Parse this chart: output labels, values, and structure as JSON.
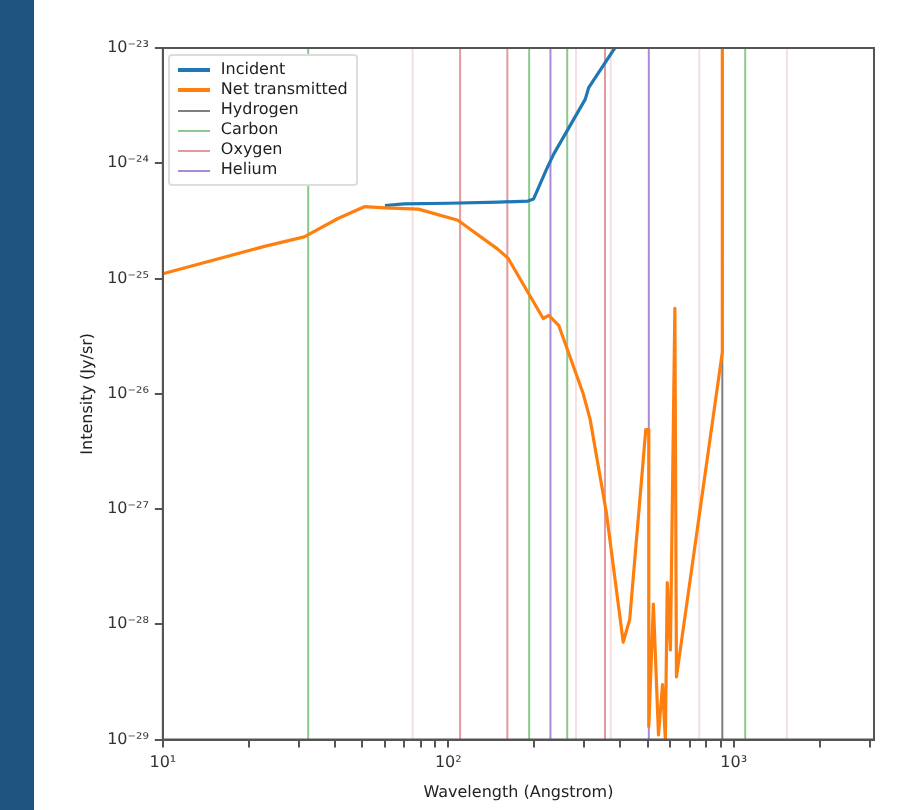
{
  "chart_data": {
    "type": "line",
    "xlabel": "Wavelength (Angstrom)",
    "ylabel": "Intensity (Jy/sr)",
    "log": "xy",
    "grid": false,
    "legend": "top left",
    "marker": "none",
    "line_style": "solid",
    "xlim": [
      10,
      3100
    ],
    "ylim": [
      1e-29,
      1e-23
    ],
    "xticks": [
      {
        "value": 10,
        "label": "10¹"
      },
      {
        "value": 20,
        "label": null
      },
      {
        "value": 30,
        "label": null
      },
      {
        "value": 40,
        "label": null
      },
      {
        "value": 50,
        "label": null
      },
      {
        "value": 60,
        "label": null
      },
      {
        "value": 70,
        "label": null
      },
      {
        "value": 80,
        "label": null
      },
      {
        "value": 90,
        "label": null
      },
      {
        "value": 100,
        "label": "10²"
      },
      {
        "value": 200,
        "label": null
      },
      {
        "value": 300,
        "label": null
      },
      {
        "value": 400,
        "label": null
      },
      {
        "value": 500,
        "label": null
      },
      {
        "value": 600,
        "label": null
      },
      {
        "value": 700,
        "label": null
      },
      {
        "value": 800,
        "label": null
      },
      {
        "value": 900,
        "label": null
      },
      {
        "value": 1000,
        "label": "10³"
      },
      {
        "value": 2000,
        "label": null
      },
      {
        "value": 3000,
        "label": null
      }
    ],
    "yticks": [
      {
        "value": 1e-29,
        "label": "10⁻²⁹"
      },
      {
        "value": 1e-28,
        "label": "10⁻²⁸"
      },
      {
        "value": 1e-27,
        "label": "10⁻²⁷"
      },
      {
        "value": 1e-26,
        "label": "10⁻²⁶"
      },
      {
        "value": 1e-25,
        "label": "10⁻²⁵"
      },
      {
        "value": 1e-24,
        "label": "10⁻²⁴"
      },
      {
        "value": 1e-23,
        "label": "10⁻²³"
      }
    ],
    "series": [
      {
        "name": "Incident",
        "color": "#1f77b4",
        "x": [
          60,
          70,
          100,
          150,
          190,
          199,
          221,
          234,
          302,
          310,
          383
        ],
        "values": [
          4.3e-25,
          4.45e-25,
          4.5e-25,
          4.6e-25,
          4.7e-25,
          4.9e-25,
          8.9e-25,
          1.2e-24,
          3.6e-24,
          4.5e-24,
          1e-23
        ]
      },
      {
        "name": "Net transmitted",
        "color": "#ff7f0e",
        "x": [
          10,
          22.7,
          31.3,
          40.9,
          50.8,
          60,
          78.6,
          108,
          149,
          162,
          215,
          225,
          244,
          297,
          314,
          358,
          410,
          432,
          492,
          504,
          504,
          523,
          545,
          563,
          576,
          585,
          600,
          622,
          630,
          912,
          912
        ],
        "values": [
          1.1e-25,
          1.9e-25,
          2.3e-25,
          3.3e-25,
          4.2e-25,
          4.1e-25,
          4e-25,
          3.2e-25,
          1.8e-25,
          1.5e-25,
          4.5e-26,
          4.8e-26,
          3.9e-26,
          1e-26,
          6e-27,
          9.3e-28,
          7e-29,
          1.1e-28,
          4.9e-27,
          4.9e-27,
          1.3e-29,
          1.5e-28,
          1.1e-29,
          3e-29,
          1e-29,
          2.3e-28,
          6e-29,
          5.5e-26,
          3.5e-29,
          2.3e-26,
          1e-23
        ]
      },
      {
        "name": "Hydrogen",
        "color": "#7f7f7f",
        "x": [
          912,
          912
        ],
        "values": [
          1e-29,
          1e-23
        ]
      },
      {
        "name": "Carbon",
        "color": "#8cc98c",
        "x": [
          32.3,
          32.3,
          null,
          192,
          192,
          null,
          261,
          261,
          null,
          1097,
          1097
        ],
        "values": [
          1e-29,
          1e-23,
          null,
          1e-29,
          1e-23,
          null,
          1e-29,
          1e-23,
          null,
          1e-29,
          1e-23
        ]
      },
      {
        "name": "Oxygen",
        "color": "#e39a9a",
        "x": [
          110,
          110,
          null,
          161,
          161,
          null,
          354,
          354
        ],
        "values": [
          1e-29,
          1e-23,
          null,
          1e-29,
          1e-23,
          null,
          1e-29,
          1e-23
        ]
      },
      {
        "name": "Helium",
        "color": "#a98ad6",
        "x": [
          228,
          228,
          null,
          504,
          504
        ],
        "values": [
          1e-29,
          1e-23,
          null,
          1e-29,
          1e-23
        ]
      }
    ],
    "ref_lines": [
      {
        "axis": "x",
        "value": 75,
        "color": "#f5dfe0"
      },
      {
        "axis": "x",
        "value": 280,
        "color": "#f5dfe0"
      },
      {
        "axis": "x",
        "value": 371,
        "color": "#f5dfe0"
      },
      {
        "axis": "x",
        "value": 757,
        "color": "#f5dfe0"
      },
      {
        "axis": "x",
        "value": 1535,
        "color": "#f5dfe0"
      }
    ]
  }
}
